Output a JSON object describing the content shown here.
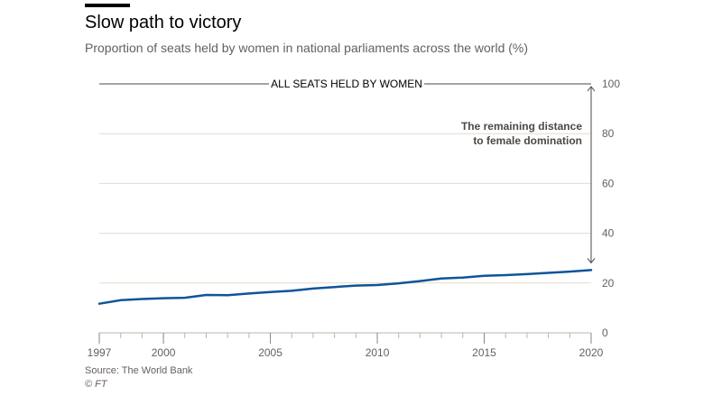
{
  "title": "Slow path to victory",
  "subtitle": "Proportion of seats held by women in national parliaments across the world (%)",
  "source": "Source: The World Bank",
  "credit": "© FT",
  "colors": {
    "line": "#0f5499",
    "grid": "#e6d9ce",
    "text": "#33302e",
    "muted": "#66605c",
    "dark": "#4d4845"
  },
  "chart_data": {
    "type": "line",
    "x": [
      1997,
      1998,
      1999,
      2000,
      2001,
      2002,
      2003,
      2004,
      2005,
      2006,
      2007,
      2008,
      2009,
      2010,
      2011,
      2012,
      2013,
      2014,
      2015,
      2016,
      2017,
      2018,
      2019,
      2020
    ],
    "series": [
      {
        "values": [
          11.7,
          13.1,
          13.6,
          13.9,
          14.1,
          15.2,
          15.1,
          15.8,
          16.4,
          16.9,
          17.8,
          18.4,
          19.0,
          19.2,
          19.9,
          20.8,
          21.8,
          22.2,
          22.9,
          23.2,
          23.6,
          24.1,
          24.6,
          25.2
        ]
      }
    ],
    "xticks": [
      1997,
      2000,
      2005,
      2010,
      2015,
      2020
    ],
    "yticks": [
      0,
      20,
      40,
      60,
      80,
      100
    ],
    "xlim": [
      1997,
      2020
    ],
    "ylim": [
      0,
      100
    ],
    "y_axis_side": "right",
    "grid": true,
    "reference_line": {
      "value": 100,
      "label": "ALL SEATS HELD BY WOMEN"
    },
    "annotation": {
      "lines": [
        "The remaining distance",
        "to female domination"
      ],
      "from": 100,
      "to": 25.2
    }
  }
}
